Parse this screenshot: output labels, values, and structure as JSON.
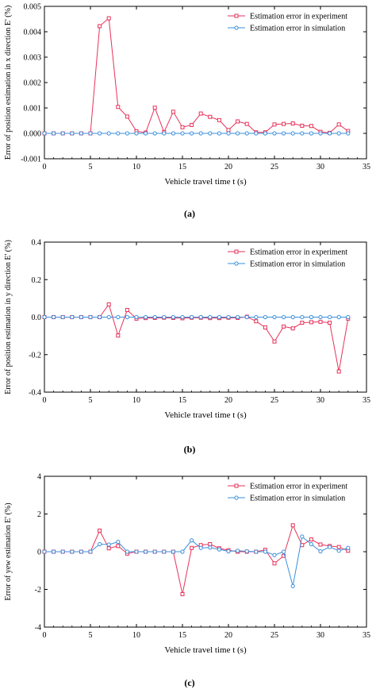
{
  "chart_data": [
    {
      "type": "line",
      "panel_label": "(a)",
      "xlabel": "Vehicle travel time t (s)",
      "ylabel": "Error of position estimation in x direction E' (%)",
      "xlim": [
        0,
        35
      ],
      "ylim": [
        -0.001,
        0.005
      ],
      "xticks": [
        "0",
        "5",
        "10",
        "15",
        "20",
        "25",
        "30",
        "35"
      ],
      "yticks": [
        "-0.001",
        "0.000",
        "0.001",
        "0.002",
        "0.003",
        "0.004",
        "0.005"
      ],
      "legend_position": "top-right",
      "series": [
        {
          "name": "Estimation error in experiment",
          "color": "#e8325a",
          "marker": "square",
          "x": [
            0,
            1,
            2,
            3,
            4,
            5,
            6,
            7,
            8,
            9,
            10,
            11,
            12,
            13,
            14,
            15,
            16,
            17,
            18,
            19,
            20,
            21,
            22,
            23,
            24,
            25,
            26,
            27,
            28,
            29,
            30,
            31,
            32,
            33
          ],
          "values": [
            0,
            0,
            0,
            0,
            0,
            0,
            0.00422,
            0.00453,
            0.00104,
            0.00066,
            8e-05,
            3e-05,
            0.00101,
            5e-05,
            0.00085,
            0.00024,
            0.00033,
            0.00078,
            0.00065,
            0.00052,
            0.00013,
            0.00047,
            0.00037,
            4e-05,
            4e-05,
            0.00035,
            0.00037,
            0.00039,
            0.0003,
            0.00029,
            6e-05,
            2e-05,
            0.00035,
            9e-05
          ]
        },
        {
          "name": "Estimation error in simulation",
          "color": "#3a8fdc",
          "marker": "circle",
          "x": [
            0,
            1,
            2,
            3,
            4,
            5,
            6,
            7,
            8,
            9,
            10,
            11,
            12,
            13,
            14,
            15,
            16,
            17,
            18,
            19,
            20,
            21,
            22,
            23,
            24,
            25,
            26,
            27,
            28,
            29,
            30,
            31,
            32,
            33
          ],
          "values": [
            0,
            0,
            0,
            0,
            0,
            0,
            0,
            0,
            0,
            0,
            0,
            0,
            0,
            0,
            0,
            0,
            0,
            0,
            0,
            0,
            0,
            0,
            0,
            0,
            0,
            0,
            0,
            0,
            0,
            0,
            0,
            0,
            0,
            0
          ]
        }
      ]
    },
    {
      "type": "line",
      "panel_label": "(b)",
      "xlabel": "Vehicle travel time t (s)",
      "ylabel": "Error of position estimation in y direction E' (%)",
      "xlim": [
        0,
        35
      ],
      "ylim": [
        -0.4,
        0.4
      ],
      "xticks": [
        "0",
        "5",
        "10",
        "15",
        "20",
        "25",
        "30",
        "35"
      ],
      "yticks": [
        "-0.4",
        "-0.2",
        "0.0",
        "0.2",
        "0.4"
      ],
      "legend_position": "top-right",
      "series": [
        {
          "name": "Estimation error in experiment",
          "color": "#e8325a",
          "marker": "square",
          "x": [
            0,
            1,
            2,
            3,
            4,
            5,
            6,
            7,
            8,
            9,
            10,
            11,
            12,
            13,
            14,
            15,
            16,
            17,
            18,
            19,
            20,
            21,
            22,
            23,
            24,
            25,
            26,
            27,
            28,
            29,
            30,
            31,
            32,
            33
          ],
          "values": [
            0,
            0,
            0,
            0,
            0,
            0,
            0,
            0.068,
            -0.098,
            0.038,
            -0.008,
            -0.005,
            -0.004,
            -0.003,
            -0.004,
            -0.006,
            -0.003,
            -0.003,
            -0.005,
            -0.005,
            -0.003,
            -0.004,
            0.002,
            -0.022,
            -0.055,
            -0.13,
            -0.05,
            -0.06,
            -0.03,
            -0.027,
            -0.025,
            -0.03,
            -0.29,
            -0.008
          ]
        },
        {
          "name": "Estimation error in simulation",
          "color": "#3a8fdc",
          "marker": "circle",
          "x": [
            0,
            1,
            2,
            3,
            4,
            5,
            6,
            7,
            8,
            9,
            10,
            11,
            12,
            13,
            14,
            15,
            16,
            17,
            18,
            19,
            20,
            21,
            22,
            23,
            24,
            25,
            26,
            27,
            28,
            29,
            30,
            31,
            32,
            33
          ],
          "values": [
            0,
            0,
            0,
            0,
            0,
            0,
            0,
            0,
            0,
            0,
            0,
            0,
            0,
            0,
            0,
            0,
            0,
            0,
            0,
            0,
            0,
            0,
            0,
            0,
            0,
            0,
            0,
            0,
            0,
            0,
            0,
            0,
            0,
            0
          ]
        }
      ]
    },
    {
      "type": "line",
      "panel_label": "(c)",
      "xlabel": "Vehicle travel time t (s)",
      "ylabel": "Error of yew estimation E' (%)",
      "xlim": [
        0,
        35
      ],
      "ylim": [
        -4,
        4
      ],
      "xticks": [
        "0",
        "5",
        "10",
        "15",
        "20",
        "25",
        "30",
        "35"
      ],
      "yticks": [
        "-4",
        "-2",
        "0",
        "2",
        "4"
      ],
      "legend_position": "top-right",
      "series": [
        {
          "name": "Estimation error in experiment",
          "color": "#e8325a",
          "marker": "square",
          "x": [
            0,
            1,
            2,
            3,
            4,
            5,
            6,
            7,
            8,
            9,
            10,
            11,
            12,
            13,
            14,
            15,
            16,
            17,
            18,
            19,
            20,
            21,
            22,
            23,
            24,
            25,
            26,
            27,
            28,
            29,
            30,
            31,
            32,
            33
          ],
          "values": [
            0,
            0,
            0,
            0,
            0,
            0,
            1.12,
            0.18,
            0.3,
            -0.1,
            0,
            0,
            0,
            0,
            0,
            -2.25,
            0.2,
            0.35,
            0.4,
            0.18,
            0.08,
            0,
            0,
            0,
            0.1,
            -0.62,
            -0.22,
            1.4,
            0.35,
            0.65,
            0.38,
            0.3,
            0.25,
            0.05
          ]
        },
        {
          "name": "Estimation error in simulation",
          "color": "#3a8fdc",
          "marker": "circle",
          "x": [
            0,
            1,
            2,
            3,
            4,
            5,
            6,
            7,
            8,
            9,
            10,
            11,
            12,
            13,
            14,
            15,
            16,
            17,
            18,
            19,
            20,
            21,
            22,
            23,
            24,
            25,
            26,
            27,
            28,
            29,
            30,
            31,
            32,
            33
          ],
          "values": [
            0,
            0,
            0,
            0,
            0,
            0,
            0.4,
            0.38,
            0.52,
            0,
            0,
            0,
            0,
            0,
            0,
            0,
            0.6,
            0.2,
            0.22,
            0.12,
            0.02,
            0.05,
            0.02,
            0,
            0,
            -0.18,
            0,
            -1.82,
            0.8,
            0.4,
            0.02,
            0.25,
            0.05,
            0.2
          ]
        }
      ]
    }
  ]
}
